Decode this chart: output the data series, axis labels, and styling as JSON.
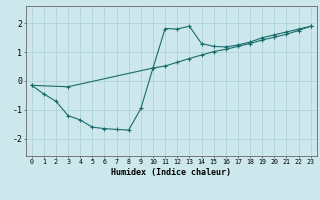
{
  "xlabel": "Humidex (Indice chaleur)",
  "bg_color": "#cce8ec",
  "line_color": "#1a6b6b",
  "grid_color": "#aacdd4",
  "xlim": [
    -0.5,
    23.5
  ],
  "ylim": [
    -2.6,
    2.6
  ],
  "yticks": [
    -2,
    -1,
    0,
    1,
    2
  ],
  "xticks": [
    0,
    1,
    2,
    3,
    4,
    5,
    6,
    7,
    8,
    9,
    10,
    11,
    12,
    13,
    14,
    15,
    16,
    17,
    18,
    19,
    20,
    21,
    22,
    23
  ],
  "series1_x": [
    0,
    1,
    2,
    3,
    4,
    5,
    6,
    7,
    8,
    9,
    10,
    11,
    12,
    13,
    14,
    15,
    16,
    17,
    18,
    19,
    20,
    21,
    22,
    23
  ],
  "series1_y": [
    -0.15,
    -0.45,
    -0.7,
    -1.2,
    -1.35,
    -1.6,
    -1.65,
    -1.68,
    -1.7,
    -0.95,
    0.45,
    1.82,
    1.8,
    1.9,
    1.3,
    1.2,
    1.18,
    1.25,
    1.35,
    1.5,
    1.6,
    1.7,
    1.8,
    1.9
  ],
  "series2_x": [
    0,
    3,
    10,
    11,
    12,
    13,
    14,
    15,
    16,
    17,
    18,
    19,
    20,
    21,
    22,
    23
  ],
  "series2_y": [
    -0.15,
    -0.2,
    0.45,
    0.52,
    0.65,
    0.78,
    0.9,
    1.02,
    1.1,
    1.2,
    1.3,
    1.42,
    1.52,
    1.62,
    1.75,
    1.9
  ]
}
